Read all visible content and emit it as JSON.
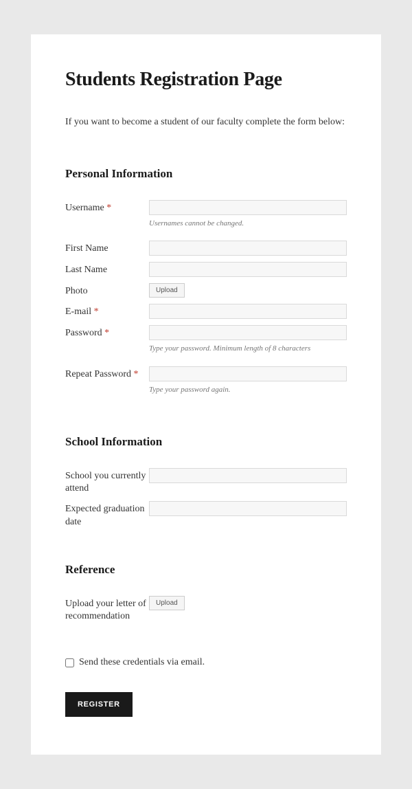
{
  "page": {
    "title": "Students Registration Page",
    "intro": "If you want to become a student of our faculty complete the form below:"
  },
  "sections": {
    "personal": {
      "title": "Personal Information",
      "fields": {
        "username": {
          "label": "Username",
          "required": true,
          "hint": "Usernames cannot be changed."
        },
        "first_name": {
          "label": "First Name",
          "required": false
        },
        "last_name": {
          "label": "Last Name",
          "required": false
        },
        "photo": {
          "label": "Photo",
          "upload_button": "Upload"
        },
        "email": {
          "label": "E-mail",
          "required": true
        },
        "password": {
          "label": "Password",
          "required": true,
          "hint": "Type your password. Minimum length of 8 characters"
        },
        "repeat_password": {
          "label": "Repeat Password",
          "required": true,
          "hint": "Type your password again."
        }
      }
    },
    "school": {
      "title": "School Information",
      "fields": {
        "current_school": {
          "label": "School you currently attend"
        },
        "grad_date": {
          "label": "Expected graduation date"
        }
      }
    },
    "reference": {
      "title": "Reference",
      "fields": {
        "letter": {
          "label": "Upload your letter of recommendation",
          "upload_button": "Upload"
        }
      }
    }
  },
  "send_email": {
    "label": "Send these credentials via email.",
    "checked": false
  },
  "submit": {
    "label": "REGISTER"
  },
  "required_marker": "*",
  "colors": {
    "page_bg": "#e9e9e9",
    "card_bg": "#ffffff",
    "text": "#333333",
    "heading": "#1a1a1a",
    "required": "#c0392b",
    "hint": "#767676",
    "input_border": "#d9d9d9",
    "input_bg": "#f7f7f7",
    "button_bg": "#1a1a1a",
    "button_text": "#ffffff"
  }
}
